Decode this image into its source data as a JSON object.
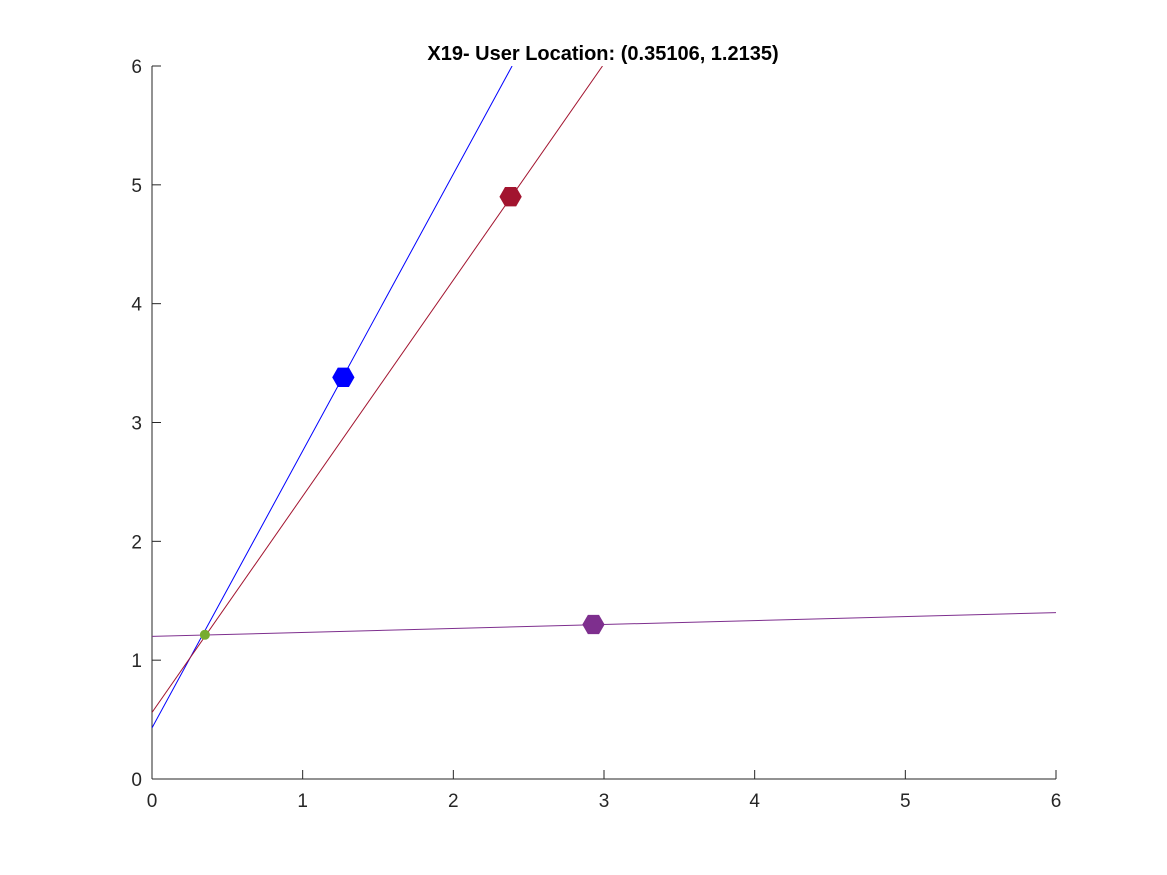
{
  "chart_data": {
    "type": "scatter",
    "title": "X19- User Location: (0.35106, 1.2135)",
    "xlabel": "",
    "ylabel": "",
    "xlim": [
      0,
      6
    ],
    "ylim": [
      0,
      6
    ],
    "x_ticks": [
      "0",
      "1",
      "2",
      "3",
      "4",
      "5",
      "6"
    ],
    "y_ticks": [
      "0",
      "1",
      "2",
      "3",
      "4",
      "5",
      "6"
    ],
    "grid": false,
    "legend": "none",
    "lines": [
      {
        "color": "#0000ff",
        "points": [
          [
            0,
            0.43
          ],
          [
            2.39,
            6.0
          ]
        ]
      },
      {
        "color": "#a2142f",
        "points": [
          [
            0,
            0.56
          ],
          [
            2.99,
            6.0
          ]
        ]
      },
      {
        "color": "#7e2f8e",
        "points": [
          [
            0,
            1.2
          ],
          [
            6.0,
            1.4
          ]
        ]
      }
    ],
    "anchors": [
      {
        "x": 1.27,
        "y": 3.38,
        "color": "#0000ff"
      },
      {
        "x": 2.38,
        "y": 4.9,
        "color": "#a2142f"
      },
      {
        "x": 2.93,
        "y": 1.3,
        "color": "#7e2f8e"
      }
    ],
    "user_location": {
      "x": 0.35106,
      "y": 1.2135,
      "color": "#77ac30"
    }
  }
}
